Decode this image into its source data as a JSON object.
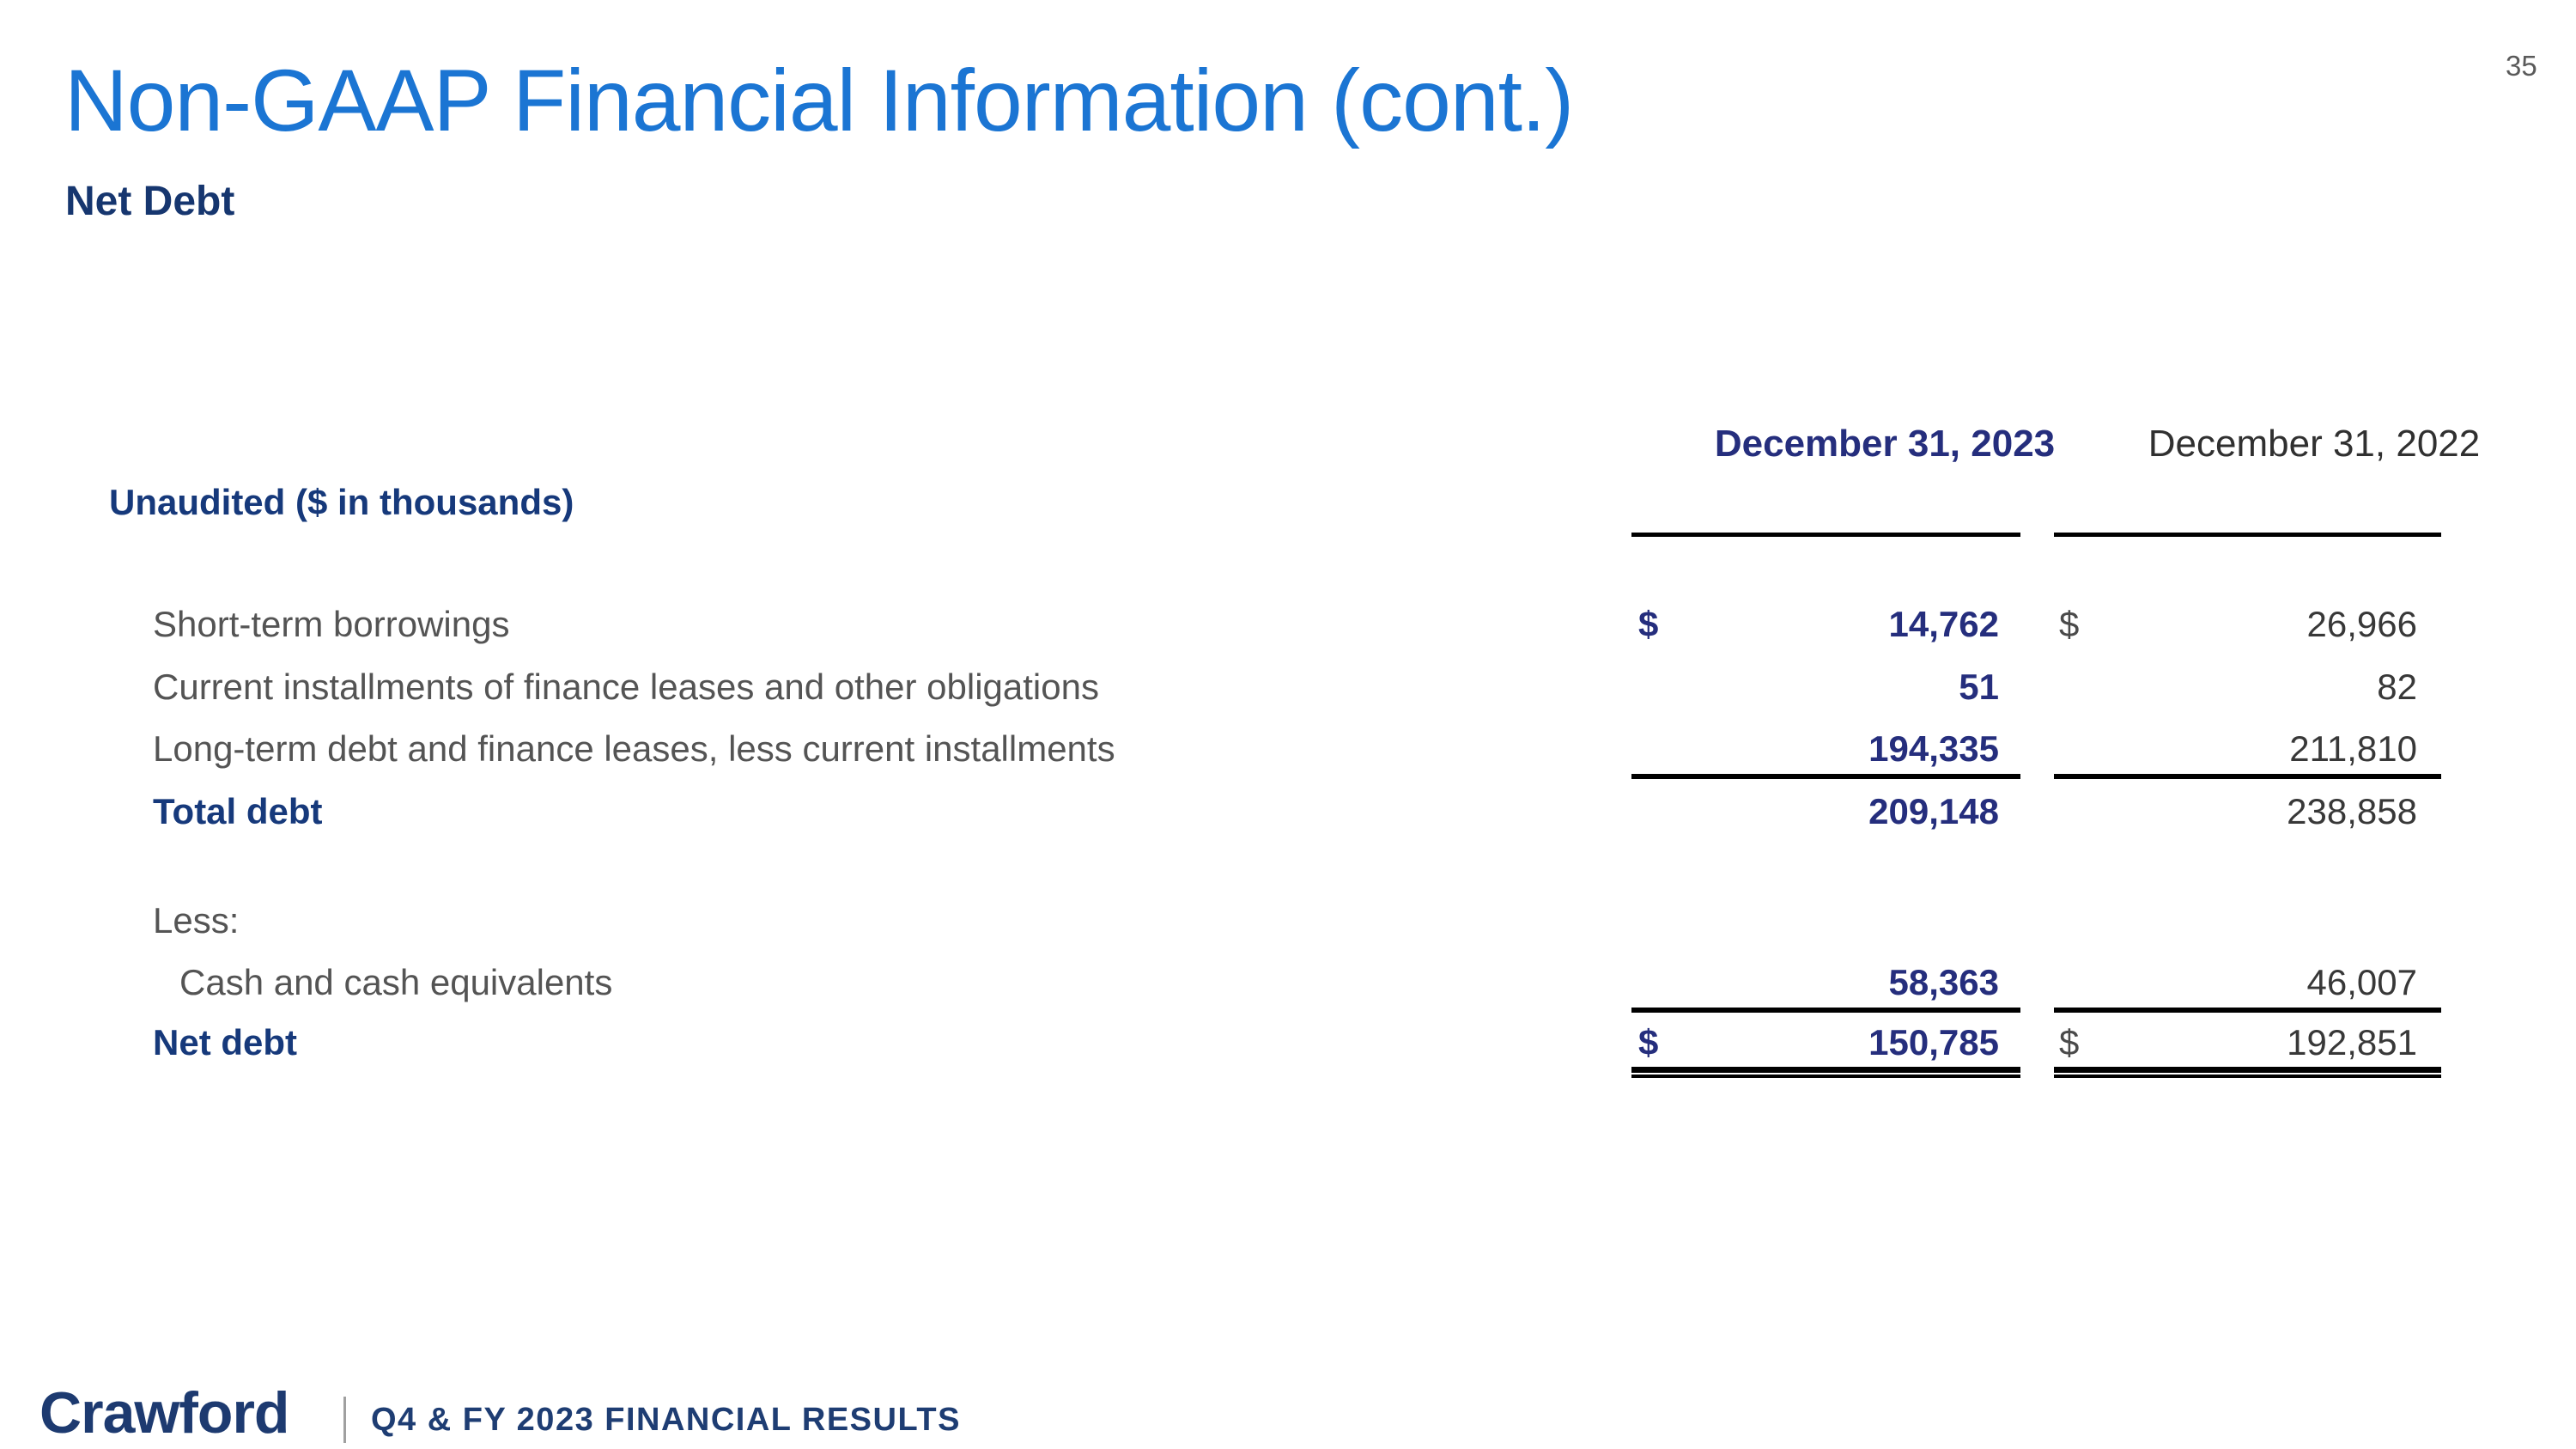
{
  "page_number": "35",
  "header": {
    "title": "Non-GAAP Financial Information (cont.)",
    "subtitle": "Net Debt"
  },
  "table": {
    "note": "Unaudited ($ in thousands)",
    "columns": [
      "December 31, 2023",
      "December 31, 2022"
    ],
    "rows": [
      {
        "label": "Short-term borrowings",
        "currency": "$",
        "v2023": "14,762",
        "v2022": "26,966"
      },
      {
        "label": "Current installments of finance leases and other obligations",
        "v2023": "51",
        "v2022": "82"
      },
      {
        "label": "Long-term debt and finance leases, less current installments",
        "v2023": "194,335",
        "v2022": "211,810"
      },
      {
        "label": "Total debt",
        "v2023": "209,148",
        "v2022": "238,858"
      },
      {
        "label": "Less:"
      },
      {
        "label": "Cash and cash equivalents",
        "v2023": "58,363",
        "v2022": "46,007"
      },
      {
        "label": "Net debt",
        "currency": "$",
        "v2023": "150,785",
        "v2022": "192,851"
      }
    ]
  },
  "footer": {
    "logo": "Crawford",
    "caption": "Q4 & FY 2023 FINANCIAL RESULTS"
  },
  "colors": {
    "title_blue": "#1b75d3",
    "label_navy": "#16397b",
    "value_navy": "#252e7d",
    "text_gray": "#545454",
    "value_gray": "#383838",
    "line_black": "#000000",
    "logo_navy": "#1d3a70"
  }
}
